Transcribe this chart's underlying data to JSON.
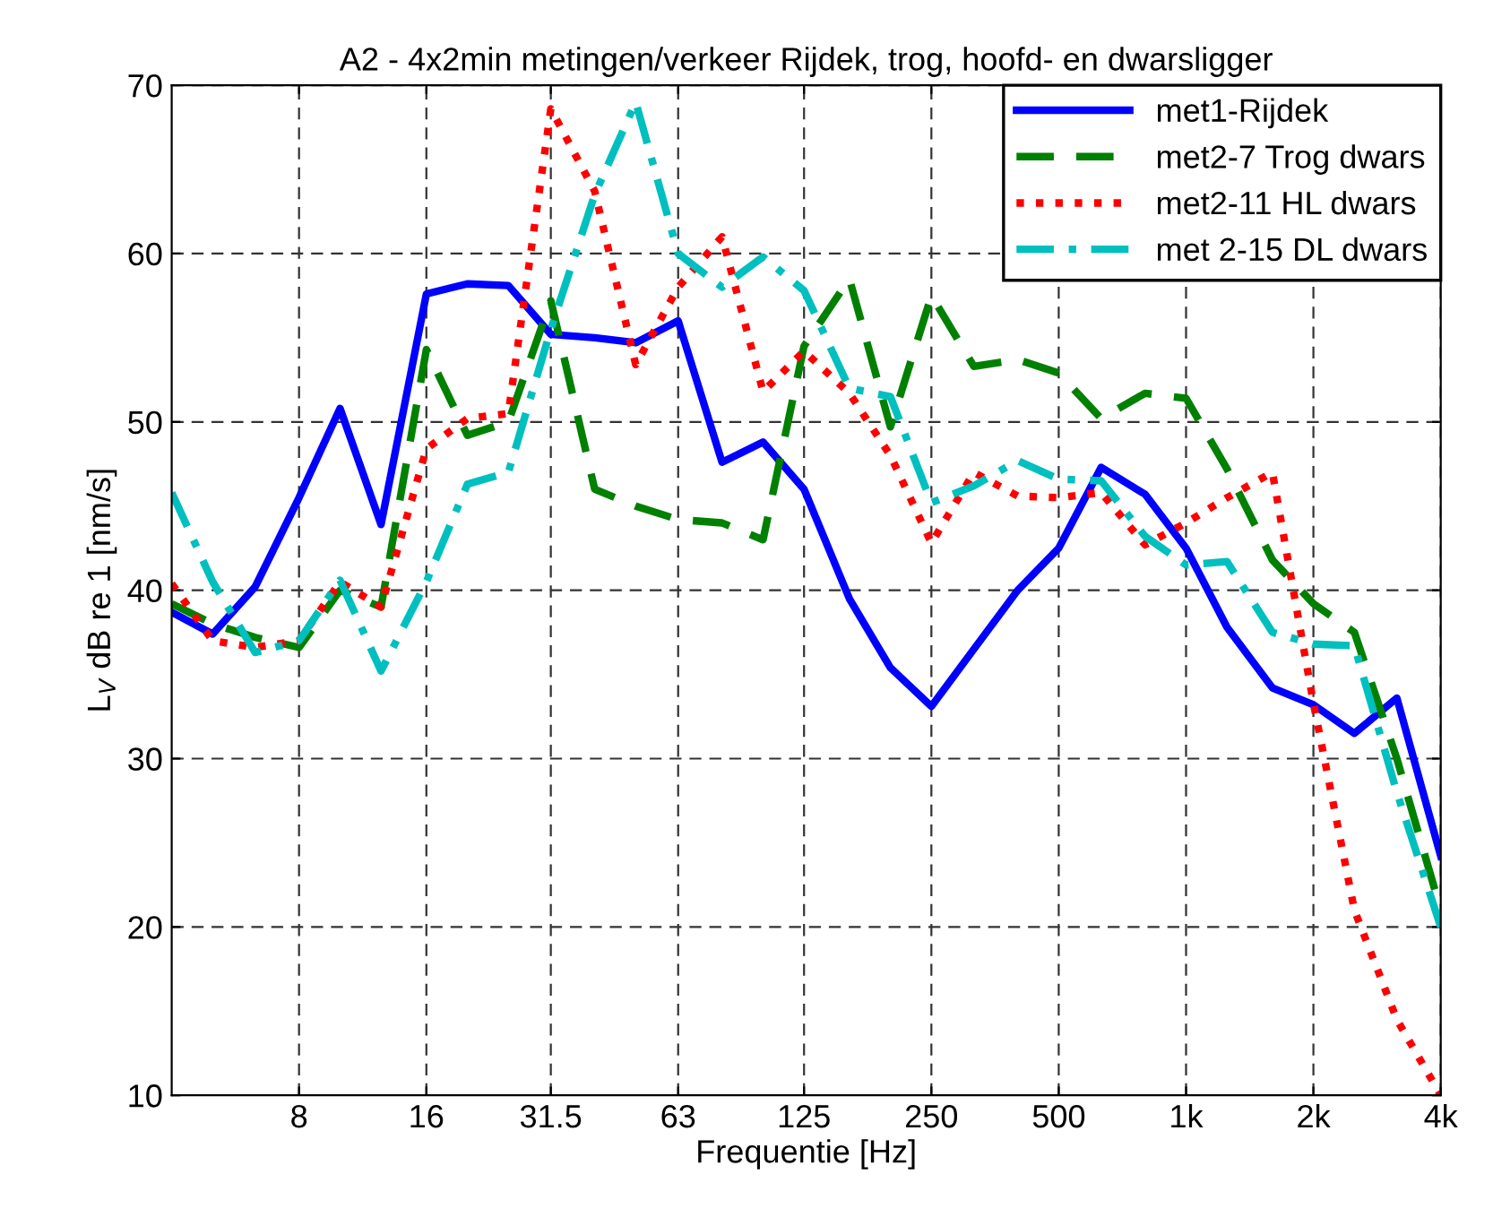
{
  "chart_data": {
    "type": "line",
    "title": "A2 - 4x2min metingen/verkeer Rijdek, trog, hoofd- en dwarsligger",
    "xlabel": "Frequentie [Hz]",
    "ylabel": "L$_{V}$ dB re 1 [nm/s]",
    "log": "x",
    "grid": true,
    "legend": "top right",
    "marker": "none",
    "x": [
      4,
      5,
      6.3,
      8,
      10,
      12.5,
      16,
      20,
      25,
      31.5,
      40,
      50,
      63,
      80,
      100,
      125,
      160,
      200,
      250,
      315,
      400,
      500,
      630,
      800,
      1000,
      1250,
      1600,
      2000,
      2500,
      3150,
      4000
    ],
    "xlim": [
      4,
      4000
    ],
    "xticks": [
      8,
      16,
      31.5,
      63,
      125,
      250,
      500,
      {
        "value": 1000,
        "label": "1k"
      },
      {
        "value": 2000,
        "label": "2k"
      },
      {
        "value": 4000,
        "label": "4k"
      }
    ],
    "ylim": [
      10,
      70
    ],
    "yticks": [
      10,
      20,
      30,
      40,
      50,
      60,
      70
    ],
    "series": [
      {
        "name": "met1-Rijdek",
        "color": "#0000ff",
        "line_style": "solid",
        "values": [
          38.7,
          37.4,
          40.2,
          45.5,
          50.8,
          43.9,
          57.6,
          58.2,
          58.1,
          55.2,
          55.0,
          54.7,
          56.0,
          47.6,
          48.8,
          46.0,
          39.5,
          35.4,
          33.1,
          36.5,
          40.0,
          42.5,
          47.3,
          45.7,
          42.5,
          37.8,
          34.2,
          33.2,
          31.5,
          33.6,
          24.2
        ]
      },
      {
        "name": "met2-7 Trog dwars",
        "color": "#008000",
        "line_style": "dashed",
        "values": [
          39.2,
          38.0,
          37.2,
          36.6,
          40.0,
          39.0,
          54.3,
          49.2,
          50.0,
          57.2,
          46.0,
          45.0,
          44.2,
          44.0,
          43.0,
          54.5,
          58.5,
          49.7,
          57.5,
          53.3,
          53.7,
          52.9,
          50.2,
          51.7,
          51.4,
          47.2,
          41.8,
          39.2,
          37.5,
          30.0,
          21.0
        ]
      },
      {
        "name": "met2-11 HL dwars",
        "color": "#ff0000",
        "line_style": "dotted",
        "values": [
          40.4,
          37.0,
          36.6,
          37.0,
          40.5,
          39.0,
          48.4,
          50.2,
          50.5,
          68.6,
          63.7,
          53.4,
          58.0,
          61.0,
          51.8,
          54.2,
          51.7,
          48.0,
          42.8,
          47.0,
          45.6,
          45.5,
          45.8,
          42.7,
          44.0,
          45.5,
          47.0,
          33.3,
          21.0,
          14.5,
          10.0
        ]
      },
      {
        "name": "met 2-15 DL dwars",
        "color": "#00bfbf",
        "line_style": "dashdot",
        "values": [
          45.8,
          40.5,
          36.3,
          37.0,
          40.6,
          35.2,
          40.5,
          46.3,
          47.0,
          55.5,
          63.5,
          69.0,
          60.0,
          58.0,
          59.8,
          57.8,
          52.0,
          51.5,
          45.2,
          46.2,
          47.7,
          46.6,
          46.5,
          43.2,
          41.5,
          41.7,
          37.5,
          36.8,
          36.7,
          28.0,
          20.0
        ]
      }
    ]
  }
}
